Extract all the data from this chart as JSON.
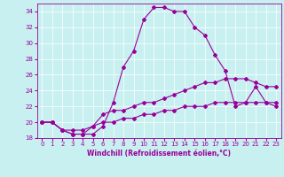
{
  "xlabel": "Windchill (Refroidissement éolien,°C)",
  "background_color": "#c8f0f0",
  "line_color": "#990099",
  "xlim": [
    -0.5,
    23.5
  ],
  "ylim": [
    18,
    35
  ],
  "yticks": [
    18,
    20,
    22,
    24,
    26,
    28,
    30,
    32,
    34
  ],
  "xticks": [
    0,
    1,
    2,
    3,
    4,
    5,
    6,
    7,
    8,
    9,
    10,
    11,
    12,
    13,
    14,
    15,
    16,
    17,
    18,
    19,
    20,
    21,
    22,
    23
  ],
  "series": [
    [
      20.0,
      20.0,
      19.0,
      18.5,
      18.5,
      18.5,
      19.5,
      22.5,
      27.0,
      29.0,
      33.0,
      34.5,
      34.5,
      34.0,
      34.0,
      32.0,
      31.0,
      28.5,
      26.5,
      22.0,
      22.5,
      24.5,
      22.5,
      22.0
    ],
    [
      20.0,
      20.0,
      19.0,
      18.5,
      18.5,
      19.5,
      21.0,
      21.5,
      21.5,
      22.0,
      22.5,
      22.5,
      23.0,
      23.5,
      24.0,
      24.5,
      25.0,
      25.0,
      25.5,
      25.5,
      25.5,
      25.0,
      24.5,
      24.5
    ],
    [
      20.0,
      20.0,
      19.0,
      19.0,
      19.0,
      19.5,
      20.0,
      20.0,
      20.5,
      20.5,
      21.0,
      21.0,
      21.5,
      21.5,
      22.0,
      22.0,
      22.0,
      22.5,
      22.5,
      22.5,
      22.5,
      22.5,
      22.5,
      22.5
    ]
  ],
  "tick_fontsize": 5.0,
  "xlabel_fontsize": 5.5,
  "marker_size": 2.0,
  "line_width": 0.8
}
